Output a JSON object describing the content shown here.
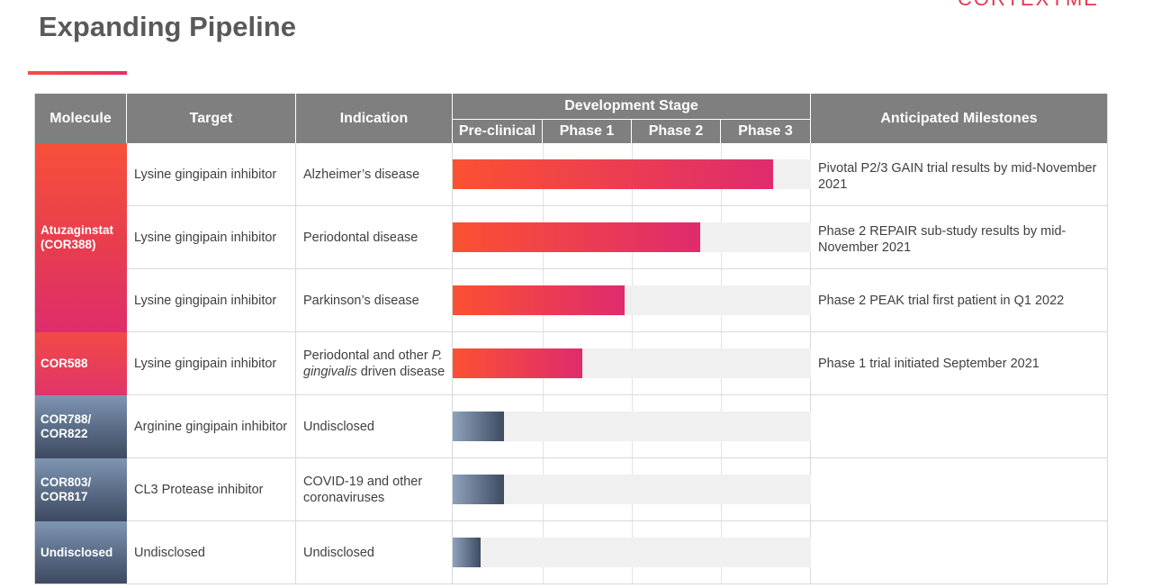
{
  "title": "Expanding Pipeline",
  "logo_text": "CORTEXYME",
  "headers": {
    "molecule": "Molecule",
    "target": "Target",
    "indication": "Indication",
    "development_stage": "Development Stage",
    "stages": [
      "Pre-clinical",
      "Phase 1",
      "Phase 2",
      "Phase 3"
    ],
    "milestones": "Anticipated Milestones"
  },
  "molecules": [
    "Atuzaginstat (COR388)",
    "COR588",
    "COR788/ COR822",
    "COR803/ COR817",
    "Undisclosed"
  ],
  "rows": [
    {
      "target": "Lysine gingipain inhibitor",
      "indication": "Alzheimer’s disease",
      "progress": 0.894,
      "milestone": "Pivotal P2/3 GAIN trial results by mid-November 2021"
    },
    {
      "target": "Lysine gingipain inhibitor",
      "indication": "Periodontal disease",
      "progress": 0.691,
      "milestone": "Phase 2 REPAIR sub-study results by mid-November 2021"
    },
    {
      "target": "Lysine gingipain inhibitor",
      "indication": "Parkinson’s disease",
      "progress": 0.48,
      "milestone": "Phase 2 PEAK trial first patient in Q1 2022"
    },
    {
      "target": "Lysine gingipain inhibitor",
      "indication_pre": "Periodontal and other",
      "indication_em": "P. gingivalis",
      "indication_post": "driven disease",
      "progress": 0.362,
      "milestone": "Phase 1 trial initiated September 2021"
    },
    {
      "target": "Arginine gingipain inhibitor",
      "indication": "Undisclosed",
      "progress": 0.143,
      "milestone": ""
    },
    {
      "target": "CL3 Protease inhibitor",
      "indication": "COVID-19 and other coronaviruses",
      "progress": 0.143,
      "milestone": ""
    },
    {
      "target": "Undisclosed",
      "indication": "Undisclosed",
      "progress": 0.078,
      "milestone": ""
    }
  ]
}
